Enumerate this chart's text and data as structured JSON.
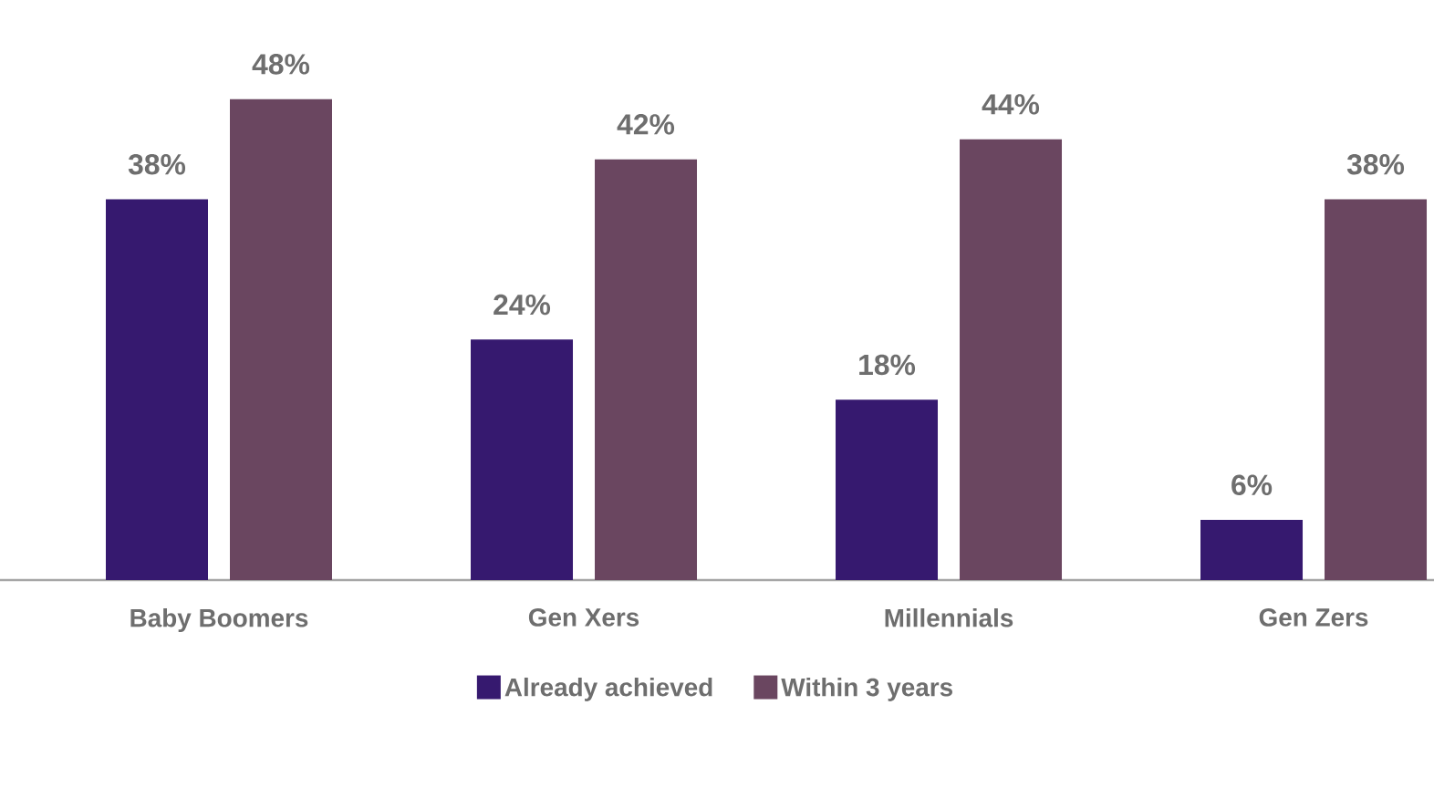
{
  "chart_data": {
    "type": "bar",
    "categories": [
      "Baby Boomers",
      "Gen Xers",
      "Millennials",
      "Gen Zers"
    ],
    "series": [
      {
        "name": "Already achieved",
        "color": "#36196f",
        "values": [
          38,
          24,
          18,
          6
        ],
        "value_labels": [
          "38%",
          "24%",
          "18%",
          "6%"
        ]
      },
      {
        "name": "Within 3 years",
        "color": "#6a4660",
        "values": [
          48,
          42,
          44,
          38
        ],
        "value_labels": [
          "48%",
          "42%",
          "44%",
          "38%"
        ]
      }
    ],
    "legend": "bottom"
  }
}
